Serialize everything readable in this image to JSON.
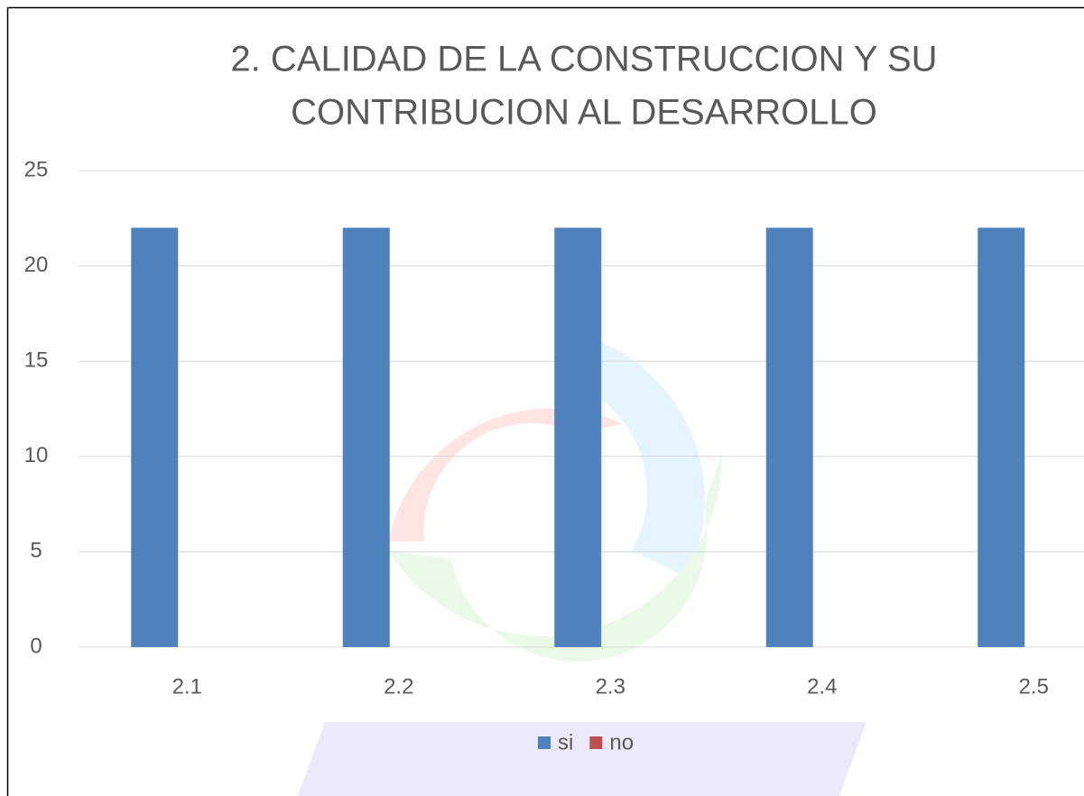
{
  "chart_data": {
    "type": "bar",
    "title": [
      "2. CALIDAD DE LA CONSTRUCCION Y SU",
      "CONTRIBUCION AL DESARROLLO"
    ],
    "categories": [
      "2.1",
      "2.2",
      "2.3",
      "2.4",
      "2.5"
    ],
    "series": [
      {
        "name": "si",
        "color": "#4f81bd",
        "values": [
          22,
          22,
          22,
          22,
          22
        ]
      },
      {
        "name": "no",
        "color": "#c0504d",
        "values": [
          0,
          0,
          0,
          0,
          0
        ]
      }
    ],
    "ylim": [
      0,
      25
    ],
    "yticks": [
      0,
      5,
      10,
      15,
      20,
      25
    ],
    "grid": true,
    "legend": "bottom"
  }
}
